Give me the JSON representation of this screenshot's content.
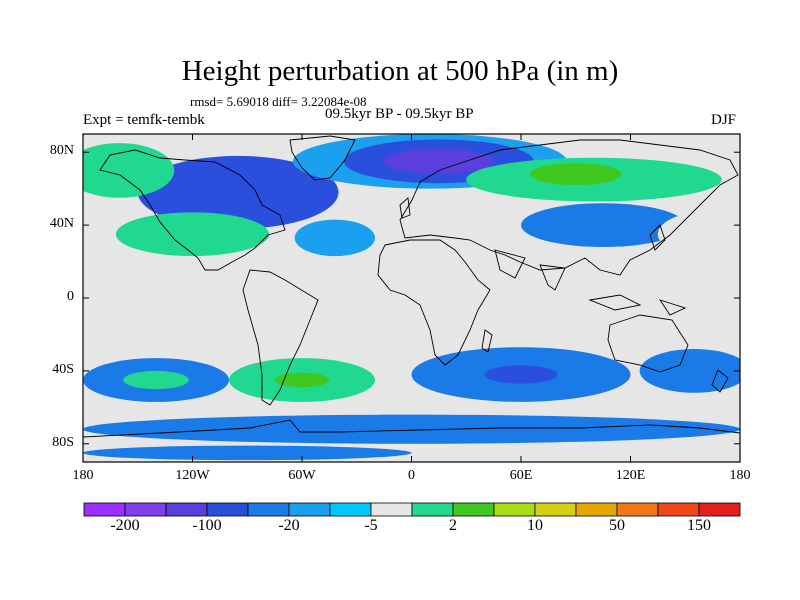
{
  "title": "Height perturbation at 500 hPa (in m)",
  "stats": "rmsd= 5.69018 diff= 3.22084e-08",
  "period": "09.5kyr BP - 09.5kyr BP",
  "experiment": "Expt = temfk-tembk",
  "season": "DJF",
  "map": {
    "projection": "cylindrical equidistant",
    "lon_range": [
      -180,
      180
    ],
    "lat_range": [
      -90,
      90
    ],
    "xticks": [
      {
        "lon": -180,
        "label": "180"
      },
      {
        "lon": -120,
        "label": "120W"
      },
      {
        "lon": -60,
        "label": "60W"
      },
      {
        "lon": 0,
        "label": "0"
      },
      {
        "lon": 60,
        "label": "60E"
      },
      {
        "lon": 120,
        "label": "120E"
      },
      {
        "lon": 180,
        "label": "180"
      }
    ],
    "yticks": [
      {
        "lat": 80,
        "label": "80N"
      },
      {
        "lat": 40,
        "label": "40N"
      },
      {
        "lat": 0,
        "label": "0"
      },
      {
        "lat": -40,
        "label": "40S"
      },
      {
        "lat": -80,
        "label": "80S"
      }
    ],
    "background_color": "#e6e6e6",
    "anomalies": [
      {
        "lon": -95,
        "lat": 58,
        "rx": 55,
        "ry": 20,
        "level": 3
      },
      {
        "lon": -120,
        "lat": 35,
        "rx": 42,
        "ry": 12,
        "level": 8
      },
      {
        "lon": -160,
        "lat": 70,
        "rx": 30,
        "ry": 15,
        "level": 8
      },
      {
        "lon": -42,
        "lat": 33,
        "rx": 22,
        "ry": 10,
        "level": 5
      },
      {
        "lon": 10,
        "lat": 75,
        "rx": 75,
        "ry": 15,
        "level": 5
      },
      {
        "lon": 15,
        "lat": 75,
        "rx": 52,
        "ry": 12,
        "level": 3
      },
      {
        "lon": 15,
        "lat": 75,
        "rx": 30,
        "ry": 7,
        "level": 2
      },
      {
        "lon": 100,
        "lat": 65,
        "rx": 70,
        "ry": 12,
        "level": 8
      },
      {
        "lon": 90,
        "lat": 68,
        "rx": 25,
        "ry": 6,
        "level": 9
      },
      {
        "lon": 105,
        "lat": 40,
        "rx": 45,
        "ry": 12,
        "level": 4
      },
      {
        "lon": 160,
        "lat": 35,
        "rx": 25,
        "ry": 12,
        "level": 7
      },
      {
        "lon": 40,
        "lat": 27,
        "rx": 18,
        "ry": 5,
        "level": 7
      },
      {
        "lon": -140,
        "lat": -45,
        "rx": 40,
        "ry": 12,
        "level": 4
      },
      {
        "lon": -140,
        "lat": -45,
        "rx": 18,
        "ry": 5,
        "level": 8
      },
      {
        "lon": -60,
        "lat": -45,
        "rx": 40,
        "ry": 12,
        "level": 8
      },
      {
        "lon": -60,
        "lat": -45,
        "rx": 15,
        "ry": 4,
        "level": 9
      },
      {
        "lon": 60,
        "lat": -42,
        "rx": 60,
        "ry": 15,
        "level": 4
      },
      {
        "lon": 60,
        "lat": -42,
        "rx": 20,
        "ry": 5,
        "level": 3
      },
      {
        "lon": 155,
        "lat": -40,
        "rx": 30,
        "ry": 12,
        "level": 4
      },
      {
        "lon": -130,
        "lat": -25,
        "rx": 25,
        "ry": 6,
        "level": 7
      },
      {
        "lon": 25,
        "lat": -25,
        "rx": 10,
        "ry": 4,
        "level": 7
      },
      {
        "lon": 0,
        "lat": -72,
        "rx": 180,
        "ry": 8,
        "level": 4
      },
      {
        "lon": -90,
        "lat": -85,
        "rx": 90,
        "ry": 4,
        "level": 4
      }
    ]
  },
  "colorbar": {
    "colors": [
      "#9b30ff",
      "#8040f0",
      "#5a3fdc",
      "#2a4fdc",
      "#1a7ae8",
      "#1aa0ef",
      "#00c8ff",
      "#e6e6e6",
      "#20d890",
      "#40c820",
      "#a8dc14",
      "#d6d014",
      "#e6a800",
      "#f07818",
      "#f04818",
      "#e81e1e"
    ],
    "labels": [
      {
        "boundary": 1,
        "text": "-200"
      },
      {
        "boundary": 3,
        "text": "-100"
      },
      {
        "boundary": 5,
        "text": "-20"
      },
      {
        "boundary": 7,
        "text": "-5"
      },
      {
        "boundary": 9,
        "text": "2"
      },
      {
        "boundary": 11,
        "text": "10"
      },
      {
        "boundary": 13,
        "text": "50"
      },
      {
        "boundary": 15,
        "text": "150"
      }
    ]
  }
}
